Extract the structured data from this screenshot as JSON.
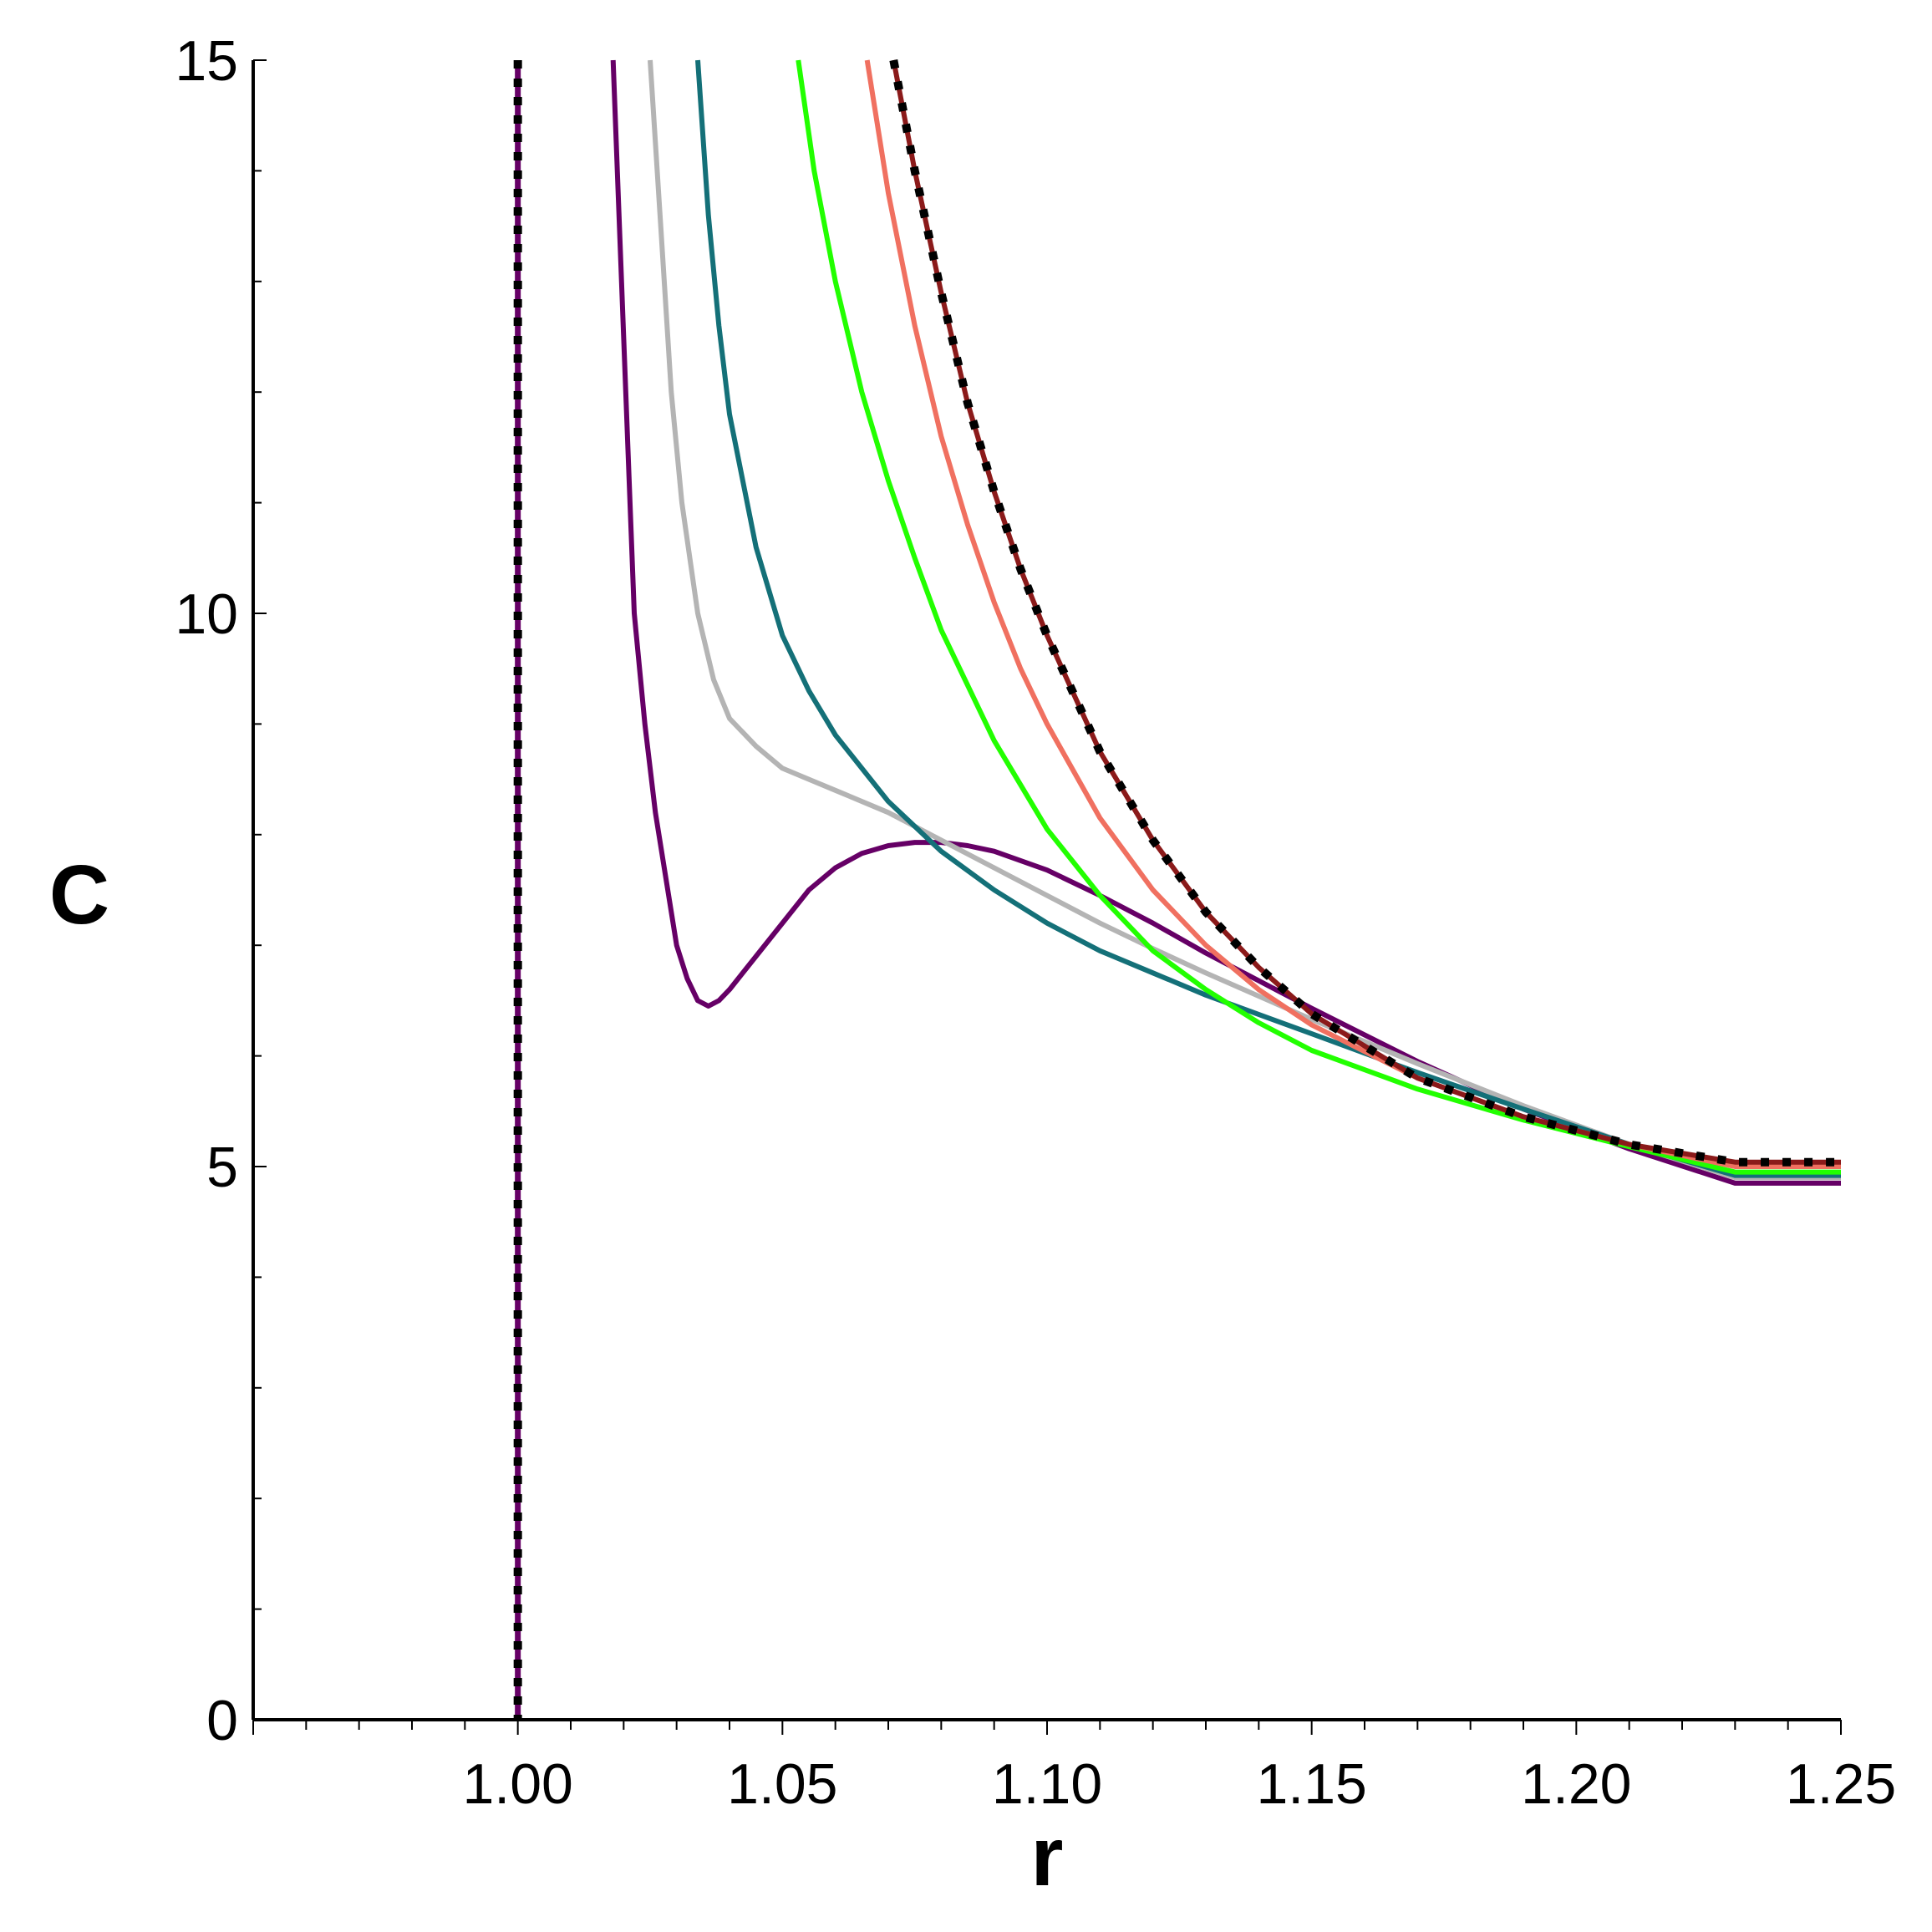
{
  "chart_data": {
    "type": "line",
    "title": "",
    "xlabel": "r",
    "ylabel": "C",
    "xlim": [
      0.95,
      1.25
    ],
    "ylim": [
      0,
      15
    ],
    "x_ticks": [
      1.0,
      1.05,
      1.1,
      1.15,
      1.2,
      1.25
    ],
    "x_tick_labels": [
      "1.00",
      "1.05",
      "1.10",
      "1.15",
      "1.20",
      "1.25"
    ],
    "y_ticks": [
      0,
      5,
      10,
      15
    ],
    "y_tick_labels": [
      "0",
      "5",
      "10",
      "15"
    ],
    "vertical_lines": [
      {
        "name": "purple asymptote",
        "x": 1.0,
        "color": "#660066"
      },
      {
        "name": "dotted asymptote",
        "x": 1.0,
        "color": "#000000",
        "dashed": true
      }
    ],
    "series": [
      {
        "name": "purple",
        "color": "#660066",
        "width": 6,
        "points": [
          [
            1.018,
            15
          ],
          [
            1.02,
            12.5
          ],
          [
            1.022,
            10
          ],
          [
            1.024,
            9.0
          ],
          [
            1.026,
            8.2
          ],
          [
            1.028,
            7.6
          ],
          [
            1.03,
            7.0
          ],
          [
            1.032,
            6.7
          ],
          [
            1.034,
            6.5
          ],
          [
            1.036,
            6.45
          ],
          [
            1.038,
            6.5
          ],
          [
            1.04,
            6.6
          ],
          [
            1.045,
            6.9
          ],
          [
            1.05,
            7.2
          ],
          [
            1.055,
            7.5
          ],
          [
            1.06,
            7.7
          ],
          [
            1.065,
            7.83
          ],
          [
            1.07,
            7.9
          ],
          [
            1.075,
            7.93
          ],
          [
            1.08,
            7.93
          ],
          [
            1.085,
            7.9
          ],
          [
            1.09,
            7.85
          ],
          [
            1.1,
            7.68
          ],
          [
            1.11,
            7.45
          ],
          [
            1.12,
            7.2
          ],
          [
            1.13,
            6.93
          ],
          [
            1.15,
            6.43
          ],
          [
            1.17,
            5.95
          ],
          [
            1.19,
            5.52
          ],
          [
            1.21,
            5.16
          ],
          [
            1.23,
            4.85
          ],
          [
            1.25,
            4.85
          ]
        ]
      },
      {
        "name": "grey",
        "color": "#b4b4b4",
        "width": 6,
        "points": [
          [
            1.025,
            15
          ],
          [
            1.027,
            13.5
          ],
          [
            1.029,
            12
          ],
          [
            1.031,
            11
          ],
          [
            1.034,
            10
          ],
          [
            1.037,
            9.4
          ],
          [
            1.04,
            9.05
          ],
          [
            1.045,
            8.8
          ],
          [
            1.05,
            8.6
          ],
          [
            1.055,
            8.5
          ],
          [
            1.06,
            8.4
          ],
          [
            1.07,
            8.2
          ],
          [
            1.08,
            7.95
          ],
          [
            1.09,
            7.7
          ],
          [
            1.1,
            7.45
          ],
          [
            1.11,
            7.2
          ],
          [
            1.12,
            6.97
          ],
          [
            1.13,
            6.75
          ],
          [
            1.15,
            6.33
          ],
          [
            1.17,
            5.93
          ],
          [
            1.19,
            5.55
          ],
          [
            1.21,
            5.2
          ],
          [
            1.23,
            4.9
          ],
          [
            1.25,
            4.9
          ]
        ]
      },
      {
        "name": "teal",
        "color": "#147078",
        "width": 6,
        "points": [
          [
            1.034,
            15
          ],
          [
            1.036,
            13.6
          ],
          [
            1.038,
            12.6
          ],
          [
            1.04,
            11.8
          ],
          [
            1.045,
            10.6
          ],
          [
            1.05,
            9.8
          ],
          [
            1.055,
            9.3
          ],
          [
            1.06,
            8.9
          ],
          [
            1.07,
            8.3
          ],
          [
            1.08,
            7.85
          ],
          [
            1.09,
            7.5
          ],
          [
            1.1,
            7.2
          ],
          [
            1.11,
            6.95
          ],
          [
            1.12,
            6.75
          ],
          [
            1.13,
            6.55
          ],
          [
            1.15,
            6.2
          ],
          [
            1.17,
            5.85
          ],
          [
            1.19,
            5.52
          ],
          [
            1.21,
            5.2
          ],
          [
            1.23,
            4.92
          ],
          [
            1.25,
            4.92
          ]
        ]
      },
      {
        "name": "green",
        "color": "#22ff00",
        "width": 6,
        "points": [
          [
            1.053,
            15
          ],
          [
            1.056,
            14
          ],
          [
            1.06,
            13
          ],
          [
            1.065,
            12
          ],
          [
            1.07,
            11.2
          ],
          [
            1.075,
            10.5
          ],
          [
            1.08,
            9.85
          ],
          [
            1.09,
            8.85
          ],
          [
            1.1,
            8.05
          ],
          [
            1.11,
            7.45
          ],
          [
            1.12,
            6.95
          ],
          [
            1.13,
            6.6
          ],
          [
            1.14,
            6.3
          ],
          [
            1.15,
            6.05
          ],
          [
            1.17,
            5.7
          ],
          [
            1.19,
            5.42
          ],
          [
            1.21,
            5.18
          ],
          [
            1.23,
            4.95
          ],
          [
            1.25,
            4.95
          ]
        ]
      },
      {
        "name": "salmon",
        "color": "#f07060",
        "width": 6,
        "points": [
          [
            1.066,
            15
          ],
          [
            1.07,
            13.8
          ],
          [
            1.075,
            12.6
          ],
          [
            1.08,
            11.6
          ],
          [
            1.085,
            10.8
          ],
          [
            1.09,
            10.1
          ],
          [
            1.095,
            9.5
          ],
          [
            1.1,
            9.0
          ],
          [
            1.11,
            8.15
          ],
          [
            1.12,
            7.5
          ],
          [
            1.13,
            7.0
          ],
          [
            1.14,
            6.6
          ],
          [
            1.15,
            6.28
          ],
          [
            1.17,
            5.8
          ],
          [
            1.19,
            5.45
          ],
          [
            1.21,
            5.2
          ],
          [
            1.23,
            5.0
          ],
          [
            1.25,
            5.0
          ]
        ]
      },
      {
        "name": "dark red",
        "color": "#8b1a1a",
        "width": 6,
        "points": [
          [
            1.071,
            15
          ],
          [
            1.075,
            14
          ],
          [
            1.08,
            12.9
          ],
          [
            1.085,
            11.9
          ],
          [
            1.09,
            11.1
          ],
          [
            1.095,
            10.4
          ],
          [
            1.1,
            9.8
          ],
          [
            1.11,
            8.75
          ],
          [
            1.12,
            7.95
          ],
          [
            1.13,
            7.3
          ],
          [
            1.14,
            6.8
          ],
          [
            1.15,
            6.38
          ],
          [
            1.17,
            5.8
          ],
          [
            1.19,
            5.45
          ],
          [
            1.21,
            5.2
          ],
          [
            1.23,
            5.04
          ],
          [
            1.25,
            5.04
          ]
        ]
      },
      {
        "name": "dotted reference",
        "color": "#000000",
        "width": 10,
        "dashed": true,
        "points": [
          [
            1.071,
            15
          ],
          [
            1.075,
            14
          ],
          [
            1.08,
            12.9
          ],
          [
            1.085,
            11.9
          ],
          [
            1.09,
            11.1
          ],
          [
            1.095,
            10.4
          ],
          [
            1.1,
            9.8
          ],
          [
            1.11,
            8.75
          ],
          [
            1.12,
            7.95
          ],
          [
            1.13,
            7.3
          ],
          [
            1.14,
            6.8
          ],
          [
            1.15,
            6.38
          ],
          [
            1.17,
            5.8
          ],
          [
            1.19,
            5.45
          ],
          [
            1.21,
            5.2
          ],
          [
            1.23,
            5.04
          ],
          [
            1.25,
            5.04
          ]
        ]
      }
    ]
  }
}
